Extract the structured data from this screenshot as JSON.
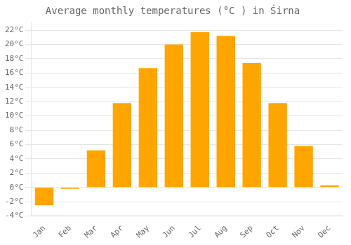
{
  "chart_data": {
    "type": "bar",
    "title": "Average monthly temperatures (°C ) in Śirna",
    "categories": [
      "Jan",
      "Feb",
      "Mar",
      "Apr",
      "May",
      "Jun",
      "Jul",
      "Aug",
      "Sep",
      "Oct",
      "Nov",
      "Dec"
    ],
    "values": [
      -2.5,
      -0.2,
      5.2,
      11.8,
      16.7,
      20.0,
      21.7,
      21.2,
      17.4,
      11.8,
      5.8,
      0.3
    ],
    "color": "#FFA500",
    "ylim": [
      -4,
      23
    ],
    "yticks": [
      {
        "value": -4,
        "label": "-4°C"
      },
      {
        "value": -2,
        "label": "-2°C"
      },
      {
        "value": 0,
        "label": "0°C"
      },
      {
        "value": 2,
        "label": "2°C"
      },
      {
        "value": 4,
        "label": "4°C"
      },
      {
        "value": 6,
        "label": "6°C"
      },
      {
        "value": 8,
        "label": "8°C"
      },
      {
        "value": 10,
        "label": "10°C"
      },
      {
        "value": 12,
        "label": "12°C"
      },
      {
        "value": 14,
        "label": "14°C"
      },
      {
        "value": 16,
        "label": "16°C"
      },
      {
        "value": 18,
        "label": "18°C"
      },
      {
        "value": 20,
        "label": "20°C"
      },
      {
        "value": 22,
        "label": "22°C"
      }
    ],
    "grid": true
  }
}
